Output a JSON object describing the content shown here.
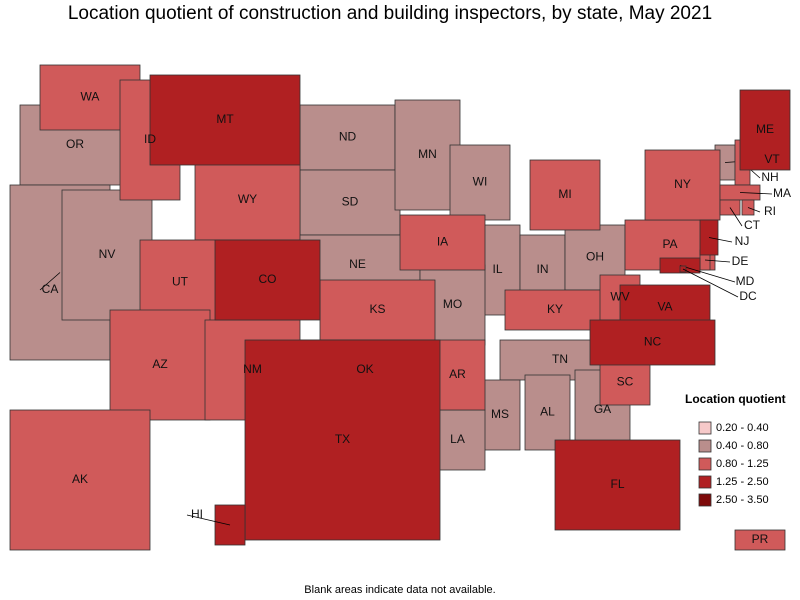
{
  "title": "Location quotient of construction and building inspectors, by state, May 2021",
  "footnote": "Blank areas indicate data not available.",
  "legend": {
    "title": "Location quotient",
    "items": [
      {
        "label": "0.20 - 0.40",
        "color": "#f6c9c9",
        "states": []
      },
      {
        "label": "0.40 - 0.80",
        "color": "#b98e8c",
        "states": [
          "OR",
          "CA",
          "NV",
          "ND",
          "SD",
          "NE",
          "MN",
          "WI",
          "IL",
          "IN",
          "OH",
          "MO",
          "TN",
          "MS",
          "AL",
          "GA",
          "LA",
          "VT"
        ]
      },
      {
        "label": "0.80 - 1.25",
        "color": "#d05a5a",
        "states": [
          "WA",
          "ID",
          "WY",
          "UT",
          "AZ",
          "NM",
          "KS",
          "OK",
          "IA",
          "AR",
          "MI",
          "KY",
          "WV",
          "SC",
          "PA",
          "NY",
          "NH",
          "MA",
          "CT",
          "RI",
          "DE",
          "AK",
          "PR"
        ]
      },
      {
        "label": "1.25 - 2.50",
        "color": "#b02022",
        "states": [
          "MT",
          "CO",
          "TX",
          "VA",
          "NC",
          "FL",
          "ME",
          "NJ",
          "MD",
          "DC",
          "HI"
        ]
      },
      {
        "label": "2.50 - 3.50",
        "color": "#7e0a0a",
        "states": []
      }
    ]
  }
}
